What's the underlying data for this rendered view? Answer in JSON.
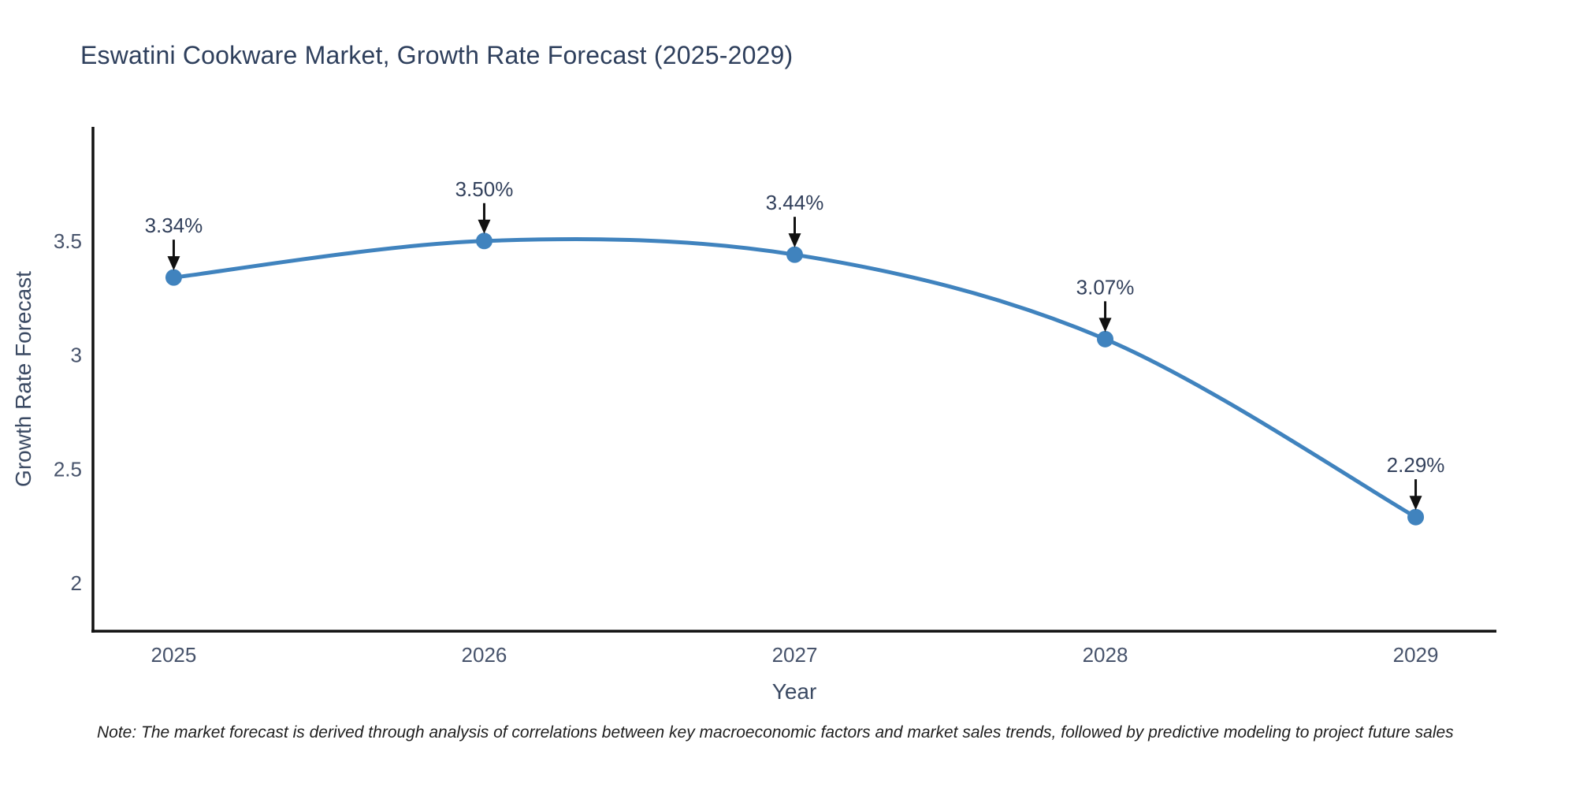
{
  "title": "Eswatini Cookware Market, Growth Rate Forecast (2025-2029)",
  "note": "Note: The market forecast is derived through analysis of correlations between key macroeconomic factors and market sales trends, followed by predictive modeling to project future sales",
  "chart_data": {
    "type": "line",
    "title": "Eswatini Cookware Market, Growth Rate Forecast (2025-2029)",
    "xlabel": "Year",
    "ylabel": "Growth Rate Forecast",
    "x": [
      2025,
      2026,
      2027,
      2028,
      2029
    ],
    "series": [
      {
        "name": "Growth Rate Forecast",
        "values": [
          3.34,
          3.5,
          3.44,
          3.07,
          2.29
        ],
        "point_labels": [
          "3.34%",
          "3.50%",
          "3.44%",
          "3.07%",
          "2.29%"
        ]
      }
    ],
    "line_shape": "spline",
    "markers": true,
    "annotations": "arrow-down-to-point",
    "grid": false,
    "legend_position": "none",
    "xticks": [
      2025,
      2026,
      2027,
      2028,
      2029
    ],
    "yticks": [
      3.5,
      3,
      2.5,
      2
    ],
    "xlim": [
      2024.74,
      2029.26
    ],
    "ylim": [
      1.79,
      4.0
    ],
    "colors": {
      "line": "#4083be",
      "marker": "#4083be",
      "arrow": "#111111",
      "axis_line": "#111111",
      "title_text": "#2e3f5c",
      "axis_title_text": "#3b4a63",
      "tick_text": "#47536b",
      "annotation_text": "#33415c",
      "note_text": "#1f1f1f",
      "background": "#ffffff"
    }
  }
}
